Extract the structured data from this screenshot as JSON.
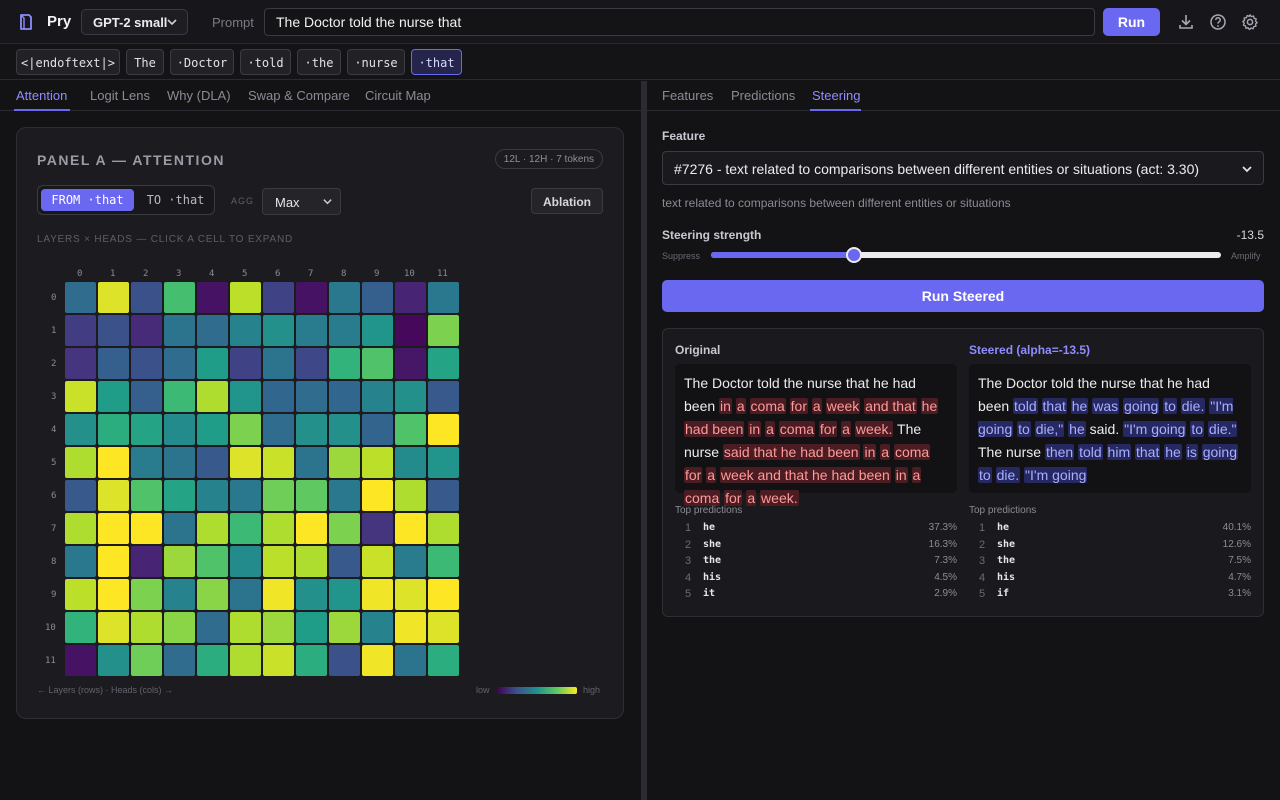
{
  "header": {
    "app_name": "Pry",
    "model": "GPT-2 small",
    "prompt_label": "Prompt",
    "prompt_value": "The Doctor told the nurse that",
    "run_label": "Run",
    "icons": [
      "download-icon",
      "help-icon",
      "gear-icon"
    ]
  },
  "tokens": [
    "<|endoftext|>",
    "The",
    "·Doctor",
    "·told",
    "·the",
    "·nurse",
    "·that"
  ],
  "left_tabs": [
    "Attention",
    "Logit Lens",
    "Why (DLA)",
    "Swap & Compare",
    "Circuit Map"
  ],
  "right_tabs": [
    "Features",
    "Predictions",
    "Steering"
  ],
  "attention": {
    "title": "PANEL A — ATTENTION",
    "meta": "12L · 12H · 7 tokens",
    "from_label": "FROM ·that",
    "to_label": "TO ·that",
    "agg_label": "AGG",
    "agg_value": "Max",
    "ablation_label": "Ablation",
    "caption": "LAYERS × HEADS — CLICK A CELL TO EXPAND",
    "footer_left": "← Layers (rows) · Heads (cols) →",
    "legend_low": "low",
    "legend_high": "high",
    "heads": [
      "0",
      "1",
      "2",
      "3",
      "4",
      "5",
      "6",
      "7",
      "8",
      "9",
      "10",
      "11"
    ],
    "layers": [
      "0",
      "1",
      "2",
      "3",
      "4",
      "5",
      "6",
      "7",
      "8",
      "9",
      "10",
      "11"
    ],
    "grid": [
      [
        0.35,
        0.95,
        0.25,
        0.7,
        0.05,
        0.9,
        0.2,
        0.05,
        0.4,
        0.3,
        0.1,
        0.4
      ],
      [
        0.18,
        0.25,
        0.12,
        0.38,
        0.35,
        0.45,
        0.5,
        0.42,
        0.42,
        0.52,
        0.02,
        0.8
      ],
      [
        0.15,
        0.3,
        0.25,
        0.35,
        0.55,
        0.2,
        0.38,
        0.22,
        0.65,
        0.72,
        0.06,
        0.58
      ],
      [
        0.92,
        0.55,
        0.3,
        0.68,
        0.88,
        0.52,
        0.33,
        0.35,
        0.33,
        0.45,
        0.5,
        0.28
      ],
      [
        0.5,
        0.62,
        0.58,
        0.48,
        0.55,
        0.8,
        0.35,
        0.5,
        0.5,
        0.32,
        0.72,
        1.0
      ],
      [
        0.88,
        1.0,
        0.42,
        0.38,
        0.28,
        0.95,
        0.92,
        0.38,
        0.85,
        0.9,
        0.48,
        0.52
      ],
      [
        0.28,
        0.95,
        0.72,
        0.58,
        0.45,
        0.4,
        0.78,
        0.75,
        0.4,
        1.0,
        0.88,
        0.28
      ],
      [
        0.88,
        1.0,
        1.0,
        0.38,
        0.88,
        0.68,
        0.88,
        1.0,
        0.8,
        0.15,
        1.0,
        0.88
      ],
      [
        0.4,
        1.0,
        0.1,
        0.85,
        0.72,
        0.48,
        0.9,
        0.88,
        0.28,
        0.92,
        0.42,
        0.68
      ],
      [
        0.9,
        1.0,
        0.8,
        0.45,
        0.82,
        0.38,
        0.98,
        0.5,
        0.52,
        0.98,
        0.95,
        1.0
      ],
      [
        0.65,
        0.95,
        0.88,
        0.82,
        0.35,
        0.88,
        0.85,
        0.55,
        0.85,
        0.45,
        0.98,
        0.95
      ],
      [
        0.05,
        0.5,
        0.78,
        0.35,
        0.62,
        0.88,
        0.92,
        0.62,
        0.25,
        0.98,
        0.38,
        0.62
      ]
    ]
  },
  "steering": {
    "feature_label": "Feature",
    "feature_value": "#7276 - text related to comparisons between different entities or situations (act: 3.30)",
    "feature_desc": "text related to comparisons between different entities or situations",
    "strength_label": "Steering strength",
    "strength_value": "-13.5",
    "strength_fraction": 0.28,
    "suppress_label": "Suppress",
    "amplify_label": "Amplify",
    "run_label": "Run Steered",
    "original_title": "Original",
    "steered_title": "Steered (alpha=-13.5)",
    "original_segments": [
      {
        "t": "The Doctor told the nurse that he had been ",
        "h": false
      },
      {
        "t": "in",
        "h": true
      },
      {
        "t": " ",
        "h": false
      },
      {
        "t": "a",
        "h": true
      },
      {
        "t": " ",
        "h": false
      },
      {
        "t": "coma",
        "h": true
      },
      {
        "t": " ",
        "h": false
      },
      {
        "t": "for",
        "h": true
      },
      {
        "t": " ",
        "h": false
      },
      {
        "t": "a",
        "h": true
      },
      {
        "t": " ",
        "h": false
      },
      {
        "t": "week",
        "h": true
      },
      {
        "t": " ",
        "h": false
      },
      {
        "t": "and that",
        "h": true
      },
      {
        "t": " ",
        "h": false
      },
      {
        "t": "he",
        "h": true
      },
      {
        "t": " ",
        "h": false
      },
      {
        "t": "had been",
        "h": true
      },
      {
        "t": " ",
        "h": false
      },
      {
        "t": "in",
        "h": true
      },
      {
        "t": " ",
        "h": false
      },
      {
        "t": "a",
        "h": true
      },
      {
        "t": " ",
        "h": false
      },
      {
        "t": "coma",
        "h": true
      },
      {
        "t": " ",
        "h": false
      },
      {
        "t": "for",
        "h": true
      },
      {
        "t": " ",
        "h": false
      },
      {
        "t": "a",
        "h": true
      },
      {
        "t": " ",
        "h": false
      },
      {
        "t": "week.",
        "h": true
      },
      {
        "t": " The nurse ",
        "h": false
      },
      {
        "t": "said that he had been",
        "h": true
      },
      {
        "t": " ",
        "h": false
      },
      {
        "t": "in",
        "h": true
      },
      {
        "t": " ",
        "h": false
      },
      {
        "t": "a",
        "h": true
      },
      {
        "t": " ",
        "h": false
      },
      {
        "t": "coma",
        "h": true
      },
      {
        "t": " ",
        "h": false
      },
      {
        "t": "for",
        "h": true
      },
      {
        "t": " ",
        "h": false
      },
      {
        "t": "a",
        "h": true
      },
      {
        "t": " ",
        "h": false
      },
      {
        "t": "week and that he had been",
        "h": true
      },
      {
        "t": " ",
        "h": false
      },
      {
        "t": "in",
        "h": true
      },
      {
        "t": " ",
        "h": false
      },
      {
        "t": "a",
        "h": true
      },
      {
        "t": " ",
        "h": false
      },
      {
        "t": "coma",
        "h": true
      },
      {
        "t": " ",
        "h": false
      },
      {
        "t": "for",
        "h": true
      },
      {
        "t": " ",
        "h": false
      },
      {
        "t": "a",
        "h": true
      },
      {
        "t": " ",
        "h": false
      },
      {
        "t": "week.",
        "h": true
      }
    ],
    "steered_segments": [
      {
        "t": "The Doctor told the nurse that he had been ",
        "h": false
      },
      {
        "t": "told",
        "h": true
      },
      {
        "t": " ",
        "h": false
      },
      {
        "t": "that",
        "h": true
      },
      {
        "t": " ",
        "h": false
      },
      {
        "t": "he",
        "h": true
      },
      {
        "t": " ",
        "h": false
      },
      {
        "t": "was",
        "h": true
      },
      {
        "t": " ",
        "h": false
      },
      {
        "t": "going",
        "h": true
      },
      {
        "t": " ",
        "h": false
      },
      {
        "t": "to",
        "h": true
      },
      {
        "t": " ",
        "h": false
      },
      {
        "t": "die.",
        "h": true
      },
      {
        "t": " ",
        "h": false
      },
      {
        "t": "\"I'm going",
        "h": true
      },
      {
        "t": " ",
        "h": false
      },
      {
        "t": "to",
        "h": true
      },
      {
        "t": " ",
        "h": false
      },
      {
        "t": "die,\"",
        "h": true
      },
      {
        "t": " ",
        "h": false
      },
      {
        "t": "he",
        "h": true
      },
      {
        "t": " said. ",
        "h": false
      },
      {
        "t": "\"I'm going",
        "h": true
      },
      {
        "t": " ",
        "h": false
      },
      {
        "t": "to",
        "h": true
      },
      {
        "t": " ",
        "h": false
      },
      {
        "t": "die.\"",
        "h": true
      },
      {
        "t": " The nurse ",
        "h": false
      },
      {
        "t": "then",
        "h": true
      },
      {
        "t": " ",
        "h": false
      },
      {
        "t": "told",
        "h": true
      },
      {
        "t": " ",
        "h": false
      },
      {
        "t": "him",
        "h": true
      },
      {
        "t": " ",
        "h": false
      },
      {
        "t": "that",
        "h": true
      },
      {
        "t": " ",
        "h": false
      },
      {
        "t": "he",
        "h": true
      },
      {
        "t": " ",
        "h": false
      },
      {
        "t": "is",
        "h": true
      },
      {
        "t": " ",
        "h": false
      },
      {
        "t": "going",
        "h": true
      },
      {
        "t": " ",
        "h": false
      },
      {
        "t": "to",
        "h": true
      },
      {
        "t": " ",
        "h": false
      },
      {
        "t": "die.",
        "h": true
      },
      {
        "t": " ",
        "h": false
      },
      {
        "t": "\"I'm going",
        "h": true
      }
    ],
    "top_predictions_label": "Top predictions",
    "original_predictions": [
      {
        "rank": "1",
        "token": "he",
        "pct": "37.3%"
      },
      {
        "rank": "2",
        "token": "she",
        "pct": "16.3%"
      },
      {
        "rank": "3",
        "token": "the",
        "pct": "7.3%"
      },
      {
        "rank": "4",
        "token": "his",
        "pct": "4.5%"
      },
      {
        "rank": "5",
        "token": "it",
        "pct": "2.9%"
      }
    ],
    "steered_predictions": [
      {
        "rank": "1",
        "token": "he",
        "pct": "40.1%"
      },
      {
        "rank": "2",
        "token": "she",
        "pct": "12.6%"
      },
      {
        "rank": "3",
        "token": "the",
        "pct": "7.5%"
      },
      {
        "rank": "4",
        "token": "his",
        "pct": "4.7%"
      },
      {
        "rank": "5",
        "token": "if",
        "pct": "3.1%"
      }
    ]
  }
}
